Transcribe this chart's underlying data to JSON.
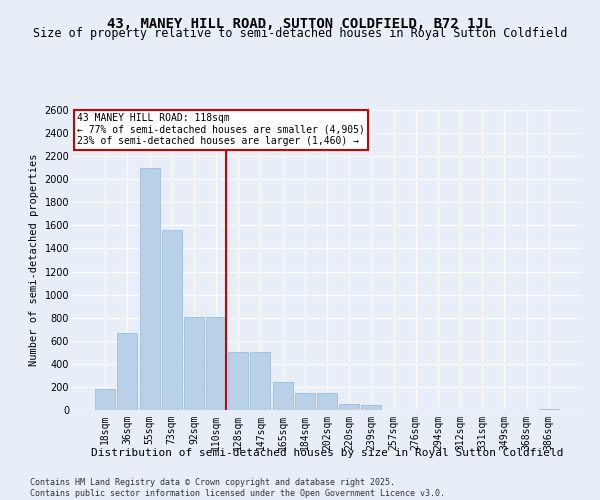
{
  "title": "43, MANEY HILL ROAD, SUTTON COLDFIELD, B72 1JL",
  "subtitle": "Size of property relative to semi-detached houses in Royal Sutton Coldfield",
  "xlabel": "Distribution of semi-detached houses by size in Royal Sutton Coldfield",
  "ylabel": "Number of semi-detached properties",
  "categories": [
    "18sqm",
    "36sqm",
    "55sqm",
    "73sqm",
    "92sqm",
    "110sqm",
    "128sqm",
    "147sqm",
    "165sqm",
    "184sqm",
    "202sqm",
    "220sqm",
    "239sqm",
    "257sqm",
    "276sqm",
    "294sqm",
    "312sqm",
    "331sqm",
    "349sqm",
    "368sqm",
    "386sqm"
  ],
  "values": [
    180,
    670,
    2100,
    1560,
    810,
    810,
    500,
    500,
    240,
    150,
    150,
    55,
    40,
    0,
    0,
    0,
    0,
    0,
    0,
    0,
    10
  ],
  "bar_color": "#b8d0e8",
  "bar_edge_color": "#90b8d8",
  "vline_x_index": 5,
  "vline_color": "#cc0000",
  "annotation_title": "43 MANEY HILL ROAD: 118sqm",
  "annotation_line1": "← 77% of semi-detached houses are smaller (4,905)",
  "annotation_line2": "23% of semi-detached houses are larger (1,460) →",
  "annotation_box_color": "#cc0000",
  "ylim": [
    0,
    2600
  ],
  "yticks": [
    0,
    200,
    400,
    600,
    800,
    1000,
    1200,
    1400,
    1600,
    1800,
    2000,
    2200,
    2400,
    2600
  ],
  "footer1": "Contains HM Land Registry data © Crown copyright and database right 2025.",
  "footer2": "Contains public sector information licensed under the Open Government Licence v3.0.",
  "bg_color": "#e8eef8",
  "plot_bg_color": "#e8eef8",
  "grid_color": "#ffffff",
  "title_fontsize": 10,
  "subtitle_fontsize": 8.5,
  "ylabel_fontsize": 7.5,
  "xlabel_fontsize": 8,
  "tick_fontsize": 7,
  "annotation_fontsize": 7,
  "footer_fontsize": 6
}
